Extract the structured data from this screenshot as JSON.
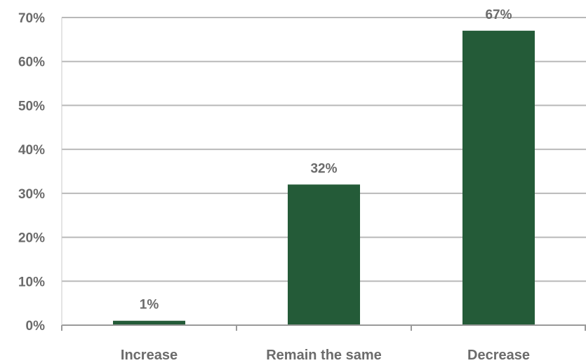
{
  "chart_data": {
    "type": "bar",
    "title": "",
    "xlabel": "",
    "ylabel": "",
    "categories": [
      "Increase",
      "Remain the same",
      "Decrease"
    ],
    "values": [
      1,
      32,
      67
    ],
    "data_labels": [
      "1%",
      "32%",
      "67%"
    ],
    "ylim": [
      0,
      70
    ],
    "y_ticks": [
      0,
      10,
      20,
      30,
      40,
      50,
      60,
      70
    ],
    "y_tick_labels": [
      "0%",
      "10%",
      "20%",
      "30%",
      "40%",
      "50%",
      "60%",
      "70%"
    ],
    "grid": true,
    "legend": "none",
    "bar_color": "#245b38"
  }
}
